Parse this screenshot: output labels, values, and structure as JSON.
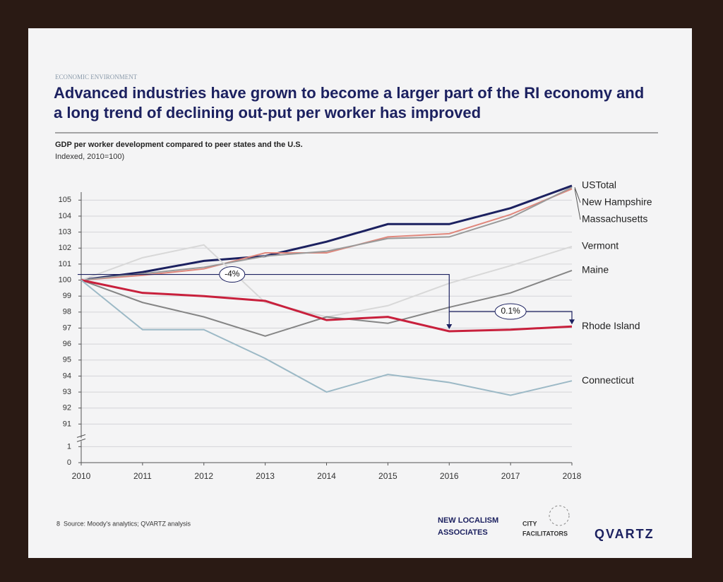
{
  "header": {
    "section": "ECONOMIC ENVIRONMENT",
    "title": "Advanced industries have grown to become a larger part of the RI economy and a long trend of declining out-put per worker has improved"
  },
  "chart_data": {
    "type": "line",
    "title": "GDP per worker development compared to peer states and the U.S.",
    "subtitle": "Indexed, 2010=100)",
    "x": [
      2010,
      2011,
      2012,
      2013,
      2014,
      2015,
      2016,
      2017,
      2018
    ],
    "xlim": [
      2010,
      2018
    ],
    "xticks": [
      2010,
      2011,
      2012,
      2013,
      2014,
      2015,
      2016,
      2017,
      2018
    ],
    "ylim": [
      0,
      105.5
    ],
    "yticks": [
      0,
      1,
      91,
      92,
      93,
      94,
      95,
      96,
      97,
      98,
      99,
      100,
      101,
      102,
      103,
      104,
      105
    ],
    "grid": true,
    "series": [
      {
        "name": "USTotal",
        "color": "#1c2160",
        "values": [
          100,
          100.5,
          101.2,
          101.5,
          102.4,
          103.5,
          103.5,
          104.5,
          105.9
        ]
      },
      {
        "name": "Massachusetts",
        "color": "#e0877c",
        "values": [
          100,
          100.3,
          100.7,
          101.7,
          101.7,
          102.7,
          102.9,
          104.1,
          105.7
        ]
      },
      {
        "name": "New Hampshire",
        "color": "#9a9a9a",
        "values": [
          100,
          100.4,
          100.8,
          101.5,
          101.8,
          102.6,
          102.7,
          103.9,
          105.8
        ]
      },
      {
        "name": "Vermont",
        "color": "#d8d8d8",
        "values": [
          100,
          101.4,
          102.2,
          98.6,
          97.7,
          98.4,
          99.8,
          100.9,
          102.1
        ]
      },
      {
        "name": "Maine",
        "color": "#858585",
        "values": [
          100,
          98.6,
          97.7,
          96.5,
          97.7,
          97.3,
          98.3,
          99.2,
          100.6
        ]
      },
      {
        "name": "Rhode Island",
        "color": "#c8203c",
        "values": [
          100,
          99.2,
          99.0,
          98.7,
          97.5,
          97.7,
          96.8,
          96.9,
          97.1
        ]
      },
      {
        "name": "Connecticut",
        "color": "#9cb9c6",
        "values": [
          100,
          96.9,
          96.9,
          95.1,
          93.0,
          94.1,
          93.6,
          92.8,
          93.7
        ]
      }
    ],
    "annotations": [
      "-4%",
      "0.1%"
    ]
  },
  "footer": {
    "page": "8",
    "source": "Source: Moody's analytics; QVARTZ analysis",
    "logo1": [
      "NEW LOCALISM",
      "ASSOCIATES"
    ],
    "logo2": [
      "CITY",
      "FACILITATORS"
    ],
    "logo3": "QVARTZ"
  }
}
